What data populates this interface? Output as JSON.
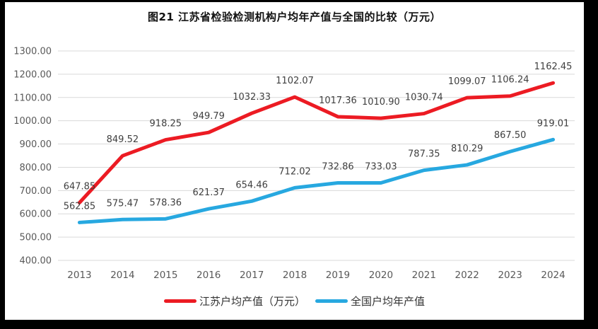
{
  "title": "图21  江苏省检验检测机构户均年产值与全国的比较（万元）",
  "chart_data": {
    "type": "line",
    "title": "图21  江苏省检验检测机构户均年产值与全国的比较（万元）",
    "categories": [
      "2013",
      "2014",
      "2015",
      "2016",
      "2017",
      "2018",
      "2019",
      "2020",
      "2021",
      "2022",
      "2023",
      "2024"
    ],
    "series": [
      {
        "name": "江苏户均产值（万元）",
        "color": "#EC1B23",
        "values": [
          647.85,
          849.52,
          918.25,
          949.79,
          1032.33,
          1102.07,
          1017.36,
          1010.9,
          1030.74,
          1099.07,
          1106.24,
          1162.45
        ]
      },
      {
        "name": "全国户均年产值",
        "color": "#27A8E0",
        "values": [
          562.85,
          575.47,
          578.36,
          621.37,
          654.46,
          712.02,
          732.86,
          733.03,
          787.35,
          810.29,
          867.5,
          919.01
        ]
      }
    ],
    "xlabel": "",
    "ylabel": "",
    "ylim": [
      400,
      1300
    ],
    "ytick_step": 100,
    "ytick_decimals": 2,
    "grid": true,
    "data_labels": true,
    "legend_position": "bottom"
  },
  "colors": {
    "frame": "#000000",
    "background": "#FFFFFF",
    "gridline": "#D9D9D9",
    "axis_text": "#595959",
    "data_label_text": "#3F3F3F"
  }
}
